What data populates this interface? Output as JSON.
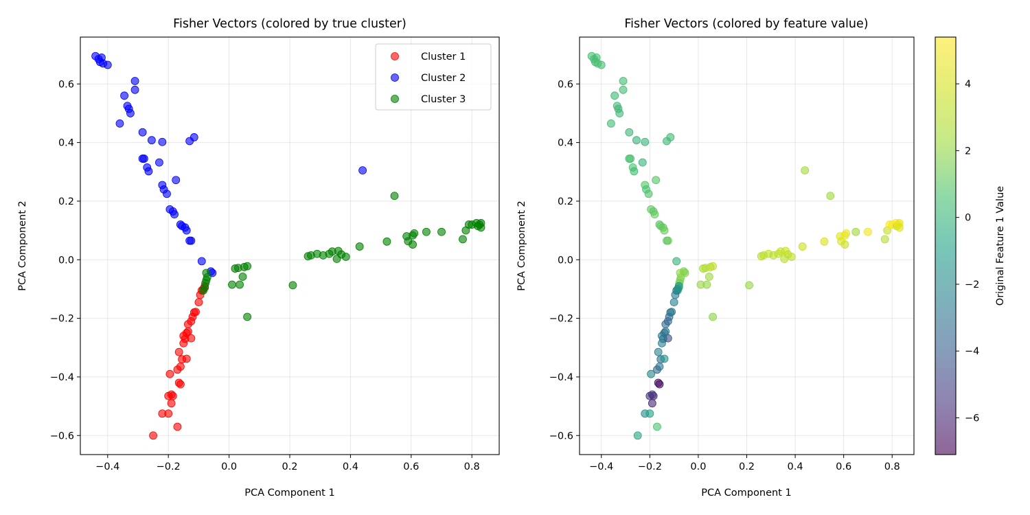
{
  "chart_data": [
    {
      "type": "scatter",
      "title": "Fisher Vectors (colored by true cluster)",
      "xlabel": "PCA Component 1",
      "ylabel": "PCA Component 2",
      "xlim": [
        -0.49,
        0.89
      ],
      "ylim": [
        -0.665,
        0.76
      ],
      "xticks": [
        "−0.4",
        "−0.2",
        "0.0",
        "0.2",
        "0.4",
        "0.6",
        "0.8"
      ],
      "yticks": [
        "−0.6",
        "−0.4",
        "−0.2",
        "0.0",
        "0.2",
        "0.4",
        "0.6"
      ],
      "xtick_values": [
        -0.4,
        -0.2,
        0.0,
        0.2,
        0.4,
        0.6,
        0.8
      ],
      "ytick_values": [
        -0.6,
        -0.4,
        -0.2,
        0.0,
        0.2,
        0.4,
        0.6
      ],
      "grid": true,
      "legend_position": "top-right",
      "series": [
        {
          "name": "Cluster 1",
          "color": "#ff0000",
          "points": [
            [
              -0.25,
              -0.6
            ],
            [
              -0.17,
              -0.57
            ],
            [
              -0.22,
              -0.525
            ],
            [
              -0.2,
              -0.525
            ],
            [
              -0.19,
              -0.49
            ],
            [
              -0.2,
              -0.465
            ],
            [
              -0.185,
              -0.465
            ],
            [
              -0.19,
              -0.46
            ],
            [
              -0.16,
              -0.425
            ],
            [
              -0.165,
              -0.42
            ],
            [
              -0.195,
              -0.39
            ],
            [
              -0.17,
              -0.375
            ],
            [
              -0.16,
              -0.365
            ],
            [
              -0.155,
              -0.34
            ],
            [
              -0.14,
              -0.338
            ],
            [
              -0.165,
              -0.315
            ],
            [
              -0.15,
              -0.285
            ],
            [
              -0.145,
              -0.27
            ],
            [
              -0.125,
              -0.268
            ],
            [
              -0.15,
              -0.26
            ],
            [
              -0.14,
              -0.25
            ],
            [
              -0.135,
              -0.245
            ],
            [
              -0.135,
              -0.22
            ],
            [
              -0.125,
              -0.21
            ],
            [
              -0.12,
              -0.195
            ],
            [
              -0.115,
              -0.18
            ],
            [
              -0.11,
              -0.178
            ],
            [
              -0.1,
              -0.145
            ],
            [
              -0.095,
              -0.12
            ],
            [
              -0.09,
              -0.105
            ],
            [
              -0.085,
              -0.1
            ],
            [
              -0.08,
              -0.09
            ]
          ]
        },
        {
          "name": "Cluster 2",
          "color": "#0000ff",
          "points": [
            [
              -0.44,
              0.695
            ],
            [
              -0.43,
              0.685
            ],
            [
              -0.425,
              0.675
            ],
            [
              -0.42,
              0.69
            ],
            [
              -0.415,
              0.67
            ],
            [
              -0.4,
              0.665
            ],
            [
              -0.31,
              0.61
            ],
            [
              -0.31,
              0.58
            ],
            [
              -0.345,
              0.56
            ],
            [
              -0.335,
              0.525
            ],
            [
              -0.33,
              0.515
            ],
            [
              -0.325,
              0.5
            ],
            [
              -0.36,
              0.465
            ],
            [
              -0.285,
              0.435
            ],
            [
              -0.255,
              0.408
            ],
            [
              -0.22,
              0.402
            ],
            [
              -0.13,
              0.405
            ],
            [
              -0.115,
              0.418
            ],
            [
              -0.285,
              0.345
            ],
            [
              -0.28,
              0.345
            ],
            [
              -0.23,
              0.332
            ],
            [
              -0.27,
              0.315
            ],
            [
              -0.265,
              0.302
            ],
            [
              -0.22,
              0.255
            ],
            [
              -0.215,
              0.24
            ],
            [
              -0.205,
              0.225
            ],
            [
              -0.175,
              0.272
            ],
            [
              -0.195,
              0.172
            ],
            [
              -0.185,
              0.165
            ],
            [
              -0.18,
              0.155
            ],
            [
              -0.16,
              0.12
            ],
            [
              -0.155,
              0.115
            ],
            [
              -0.145,
              0.11
            ],
            [
              -0.14,
              0.1
            ],
            [
              -0.13,
              0.065
            ],
            [
              -0.125,
              0.065
            ],
            [
              -0.09,
              -0.005
            ],
            [
              -0.06,
              -0.04
            ],
            [
              -0.055,
              -0.045
            ],
            [
              0.44,
              0.305
            ]
          ]
        },
        {
          "name": "Cluster 3",
          "color": "#008000",
          "points": [
            [
              -0.075,
              -0.045
            ],
            [
              -0.072,
              -0.06
            ],
            [
              -0.075,
              -0.07
            ],
            [
              -0.078,
              -0.08
            ],
            [
              -0.08,
              -0.095
            ],
            [
              -0.085,
              -0.105
            ],
            [
              0.01,
              -0.085
            ],
            [
              0.035,
              -0.085
            ],
            [
              0.02,
              -0.03
            ],
            [
              0.03,
              -0.028
            ],
            [
              0.05,
              -0.025
            ],
            [
              0.06,
              -0.022
            ],
            [
              0.045,
              -0.058
            ],
            [
              0.06,
              -0.195
            ],
            [
              0.21,
              -0.087
            ],
            [
              0.26,
              0.012
            ],
            [
              0.27,
              0.015
            ],
            [
              0.29,
              0.02
            ],
            [
              0.31,
              0.015
            ],
            [
              0.33,
              0.02
            ],
            [
              0.34,
              0.028
            ],
            [
              0.36,
              0.03
            ],
            [
              0.37,
              0.018
            ],
            [
              0.355,
              0.003
            ],
            [
              0.385,
              0.01
            ],
            [
              0.43,
              0.045
            ],
            [
              0.52,
              0.062
            ],
            [
              0.585,
              0.08
            ],
            [
              0.59,
              0.063
            ],
            [
              0.605,
              0.083
            ],
            [
              0.61,
              0.09
            ],
            [
              0.605,
              0.052
            ],
            [
              0.65,
              0.095
            ],
            [
              0.7,
              0.095
            ],
            [
              0.545,
              0.218
            ],
            [
              0.77,
              0.07
            ],
            [
              0.78,
              0.1
            ],
            [
              0.79,
              0.12
            ],
            [
              0.8,
              0.12
            ],
            [
              0.815,
              0.125
            ],
            [
              0.82,
              0.115
            ],
            [
              0.825,
              0.12
            ],
            [
              0.83,
              0.125
            ],
            [
              0.83,
              0.11
            ]
          ]
        }
      ]
    },
    {
      "type": "scatter",
      "title": "Fisher Vectors (colored by feature value)",
      "xlabel": "PCA Component 1",
      "ylabel": "PCA Component 2",
      "xlim": [
        -0.49,
        0.89
      ],
      "ylim": [
        -0.665,
        0.76
      ],
      "xticks": [
        "−0.4",
        "−0.2",
        "0.0",
        "0.2",
        "0.4",
        "0.6",
        "0.8"
      ],
      "yticks": [
        "−0.6",
        "−0.4",
        "−0.2",
        "0.0",
        "0.2",
        "0.4",
        "0.6"
      ],
      "xtick_values": [
        -0.4,
        -0.2,
        0.0,
        0.2,
        0.4,
        0.6,
        0.8
      ],
      "ytick_values": [
        -0.6,
        -0.4,
        -0.2,
        0.0,
        0.2,
        0.4,
        0.6
      ],
      "grid": true,
      "colormap": "viridis",
      "colorbar": {
        "label": "Original Feature 1 Value",
        "range": [
          -7.1,
          5.4
        ],
        "ticks": [
          "−6",
          "−4",
          "−2",
          "0",
          "2",
          "4"
        ],
        "tick_values": [
          -6,
          -4,
          -2,
          0,
          2,
          4
        ]
      },
      "points": [
        [
          -0.44,
          0.695,
          0.5
        ],
        [
          -0.43,
          0.685,
          0.6
        ],
        [
          -0.425,
          0.675,
          0.4
        ],
        [
          -0.42,
          0.69,
          0.5
        ],
        [
          -0.415,
          0.67,
          0.7
        ],
        [
          -0.4,
          0.665,
          0.6
        ],
        [
          -0.31,
          0.61,
          0.4
        ],
        [
          -0.31,
          0.58,
          0.5
        ],
        [
          -0.345,
          0.56,
          0.3
        ],
        [
          -0.335,
          0.525,
          0.4
        ],
        [
          -0.33,
          0.515,
          0.2
        ],
        [
          -0.325,
          0.5,
          0.3
        ],
        [
          -0.36,
          0.465,
          0.4
        ],
        [
          -0.285,
          0.435,
          0.2
        ],
        [
          -0.255,
          0.408,
          0.0
        ],
        [
          -0.22,
          0.402,
          0.1
        ],
        [
          -0.13,
          0.405,
          0.2
        ],
        [
          -0.115,
          0.418,
          0.4
        ],
        [
          -0.285,
          0.345,
          0.6
        ],
        [
          -0.28,
          0.345,
          0.7
        ],
        [
          -0.23,
          0.332,
          0.0
        ],
        [
          -0.27,
          0.315,
          0.7
        ],
        [
          -0.265,
          0.302,
          0.4
        ],
        [
          -0.22,
          0.255,
          0.9
        ],
        [
          -0.215,
          0.24,
          0.6
        ],
        [
          -0.205,
          0.225,
          0.8
        ],
        [
          -0.175,
          0.272,
          0.9
        ],
        [
          -0.195,
          0.172,
          1.1
        ],
        [
          -0.185,
          0.165,
          1.0
        ],
        [
          -0.18,
          0.155,
          1.2
        ],
        [
          -0.16,
          0.12,
          1.0
        ],
        [
          -0.155,
          0.115,
          1.2
        ],
        [
          -0.145,
          0.11,
          1.1
        ],
        [
          -0.14,
          0.1,
          1.3
        ],
        [
          -0.13,
          0.065,
          1.0
        ],
        [
          -0.125,
          0.065,
          1.2
        ],
        [
          -0.09,
          -0.005,
          0.0
        ],
        [
          -0.06,
          -0.04,
          1.6
        ],
        [
          -0.055,
          -0.045,
          1.6
        ],
        [
          0.44,
          0.305,
          2.3
        ],
        [
          -0.075,
          -0.045,
          1.9
        ],
        [
          -0.072,
          -0.06,
          1.8
        ],
        [
          -0.075,
          -0.07,
          1.7
        ],
        [
          -0.078,
          -0.08,
          1.4
        ],
        [
          -0.08,
          -0.095,
          0.9
        ],
        [
          -0.085,
          -0.105,
          0.2
        ],
        [
          0.01,
          -0.085,
          2.1
        ],
        [
          0.035,
          -0.085,
          2.0
        ],
        [
          0.02,
          -0.03,
          2.6
        ],
        [
          0.03,
          -0.028,
          2.8
        ],
        [
          0.05,
          -0.025,
          3.0
        ],
        [
          0.06,
          -0.022,
          3.2
        ],
        [
          0.045,
          -0.058,
          2.2
        ],
        [
          0.06,
          -0.195,
          1.9
        ],
        [
          0.21,
          -0.087,
          2.0
        ],
        [
          0.26,
          0.012,
          3.0
        ],
        [
          0.27,
          0.015,
          3.1
        ],
        [
          0.29,
          0.02,
          3.2
        ],
        [
          0.31,
          0.015,
          3.0
        ],
        [
          0.33,
          0.02,
          3.3
        ],
        [
          0.34,
          0.028,
          3.4
        ],
        [
          0.36,
          0.03,
          3.5
        ],
        [
          0.37,
          0.018,
          3.3
        ],
        [
          0.355,
          0.003,
          3.1
        ],
        [
          0.385,
          0.01,
          3.2
        ],
        [
          0.43,
          0.045,
          3.6
        ],
        [
          0.52,
          0.062,
          4.0
        ],
        [
          0.585,
          0.08,
          4.4
        ],
        [
          0.59,
          0.063,
          4.2
        ],
        [
          0.605,
          0.083,
          4.6
        ],
        [
          0.61,
          0.09,
          4.7
        ],
        [
          0.605,
          0.052,
          3.6
        ],
        [
          0.65,
          0.095,
          2.2
        ],
        [
          0.7,
          0.095,
          4.9
        ],
        [
          0.545,
          0.218,
          2.2
        ],
        [
          0.77,
          0.07,
          3.0
        ],
        [
          0.78,
          0.1,
          3.4
        ],
        [
          0.79,
          0.12,
          5.2
        ],
        [
          0.8,
          0.12,
          5.2
        ],
        [
          0.815,
          0.125,
          5.3
        ],
        [
          0.82,
          0.115,
          3.2
        ],
        [
          0.825,
          0.12,
          5.0
        ],
        [
          0.83,
          0.125,
          4.8
        ],
        [
          0.83,
          0.11,
          4.2
        ],
        [
          -0.25,
          -0.6,
          -0.6
        ],
        [
          -0.17,
          -0.57,
          0.7
        ],
        [
          -0.22,
          -0.525,
          -1.8
        ],
        [
          -0.2,
          -0.525,
          -0.8
        ],
        [
          -0.19,
          -0.49,
          -5.8
        ],
        [
          -0.2,
          -0.465,
          -5.5
        ],
        [
          -0.185,
          -0.465,
          -5.9
        ],
        [
          -0.19,
          -0.46,
          -5.3
        ],
        [
          -0.16,
          -0.425,
          -6.8
        ],
        [
          -0.165,
          -0.42,
          -6.5
        ],
        [
          -0.195,
          -0.39,
          -2.0
        ],
        [
          -0.17,
          -0.375,
          -3.5
        ],
        [
          -0.16,
          -0.365,
          -2.8
        ],
        [
          -0.155,
          -0.34,
          -3.2
        ],
        [
          -0.14,
          -0.338,
          -1.5
        ],
        [
          -0.165,
          -0.315,
          -2.2
        ],
        [
          -0.15,
          -0.285,
          -2.4
        ],
        [
          -0.145,
          -0.27,
          -3.0
        ],
        [
          -0.125,
          -0.268,
          -4.5
        ],
        [
          -0.15,
          -0.26,
          -2.7
        ],
        [
          -0.14,
          -0.25,
          -3.1
        ],
        [
          -0.135,
          -0.245,
          -2.9
        ],
        [
          -0.135,
          -0.22,
          -3.3
        ],
        [
          -0.125,
          -0.21,
          -3.6
        ],
        [
          -0.12,
          -0.195,
          -3.4
        ],
        [
          -0.115,
          -0.18,
          -3.0
        ],
        [
          -0.11,
          -0.178,
          -2.6
        ],
        [
          -0.1,
          -0.145,
          -2.4
        ],
        [
          -0.095,
          -0.12,
          -2.8
        ],
        [
          -0.09,
          -0.105,
          -2.5
        ],
        [
          -0.085,
          -0.1,
          -1.8
        ],
        [
          -0.08,
          -0.09,
          -1.5
        ]
      ]
    }
  ]
}
